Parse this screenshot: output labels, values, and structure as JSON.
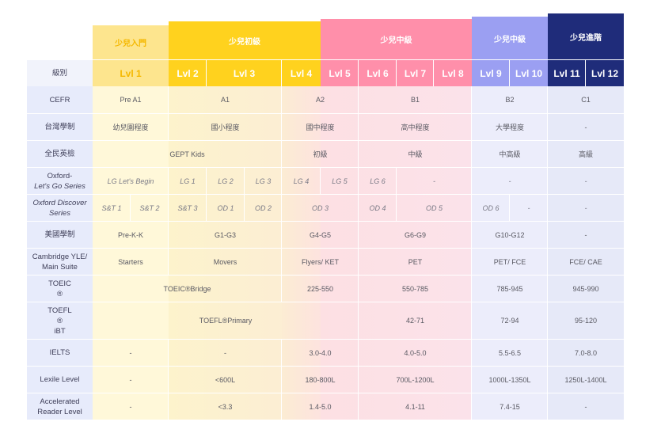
{
  "colors": {
    "band1": "#fde58e",
    "band2": "#ffd21e",
    "band3": "#ff8faa",
    "band4": "#9b9ff2",
    "band5": "#1f2c7a",
    "label_col": "#e7ebfb",
    "band1_text": "#f5b800"
  },
  "bands": [
    "少兒入門",
    "少兒初級",
    "少兒中級",
    "少兒中級",
    "少兒進階"
  ],
  "level_header": "級別",
  "levels": [
    "Lvl 1",
    "Lvl 2",
    "Lvl 3",
    "Lvl 4",
    "Lvl 5",
    "Lvl 6",
    "Lvl 7",
    "Lvl 8",
    "Lvl 9",
    "Lvl 10",
    "Lvl 11",
    "Lvl 12"
  ],
  "rows": {
    "cefr": {
      "label": "CEFR",
      "cells": [
        "Pre A1",
        "A1",
        "A2",
        "B1",
        "B2",
        "C1"
      ]
    },
    "taiwan": {
      "label": "台灣學制",
      "cells": [
        "幼兒園程度",
        "國小程度",
        "國中程度",
        "高中程度",
        "大學程度",
        "-"
      ]
    },
    "gept": {
      "label": "全民英檢",
      "cells": [
        "GEPT Kids",
        "初級",
        "中級",
        "中高級",
        "高級"
      ]
    },
    "letsgo": {
      "label_line1": "Oxford-",
      "label_line2": "Let's Go Series",
      "cells": [
        "LG Let's Begin",
        "LG 1",
        "LG 2",
        "LG 3",
        "LG 4",
        "LG 5",
        "LG 6",
        "-",
        "-",
        "-"
      ]
    },
    "discover": {
      "label_line1": "Oxford Discover",
      "label_line2": "Series",
      "cells": [
        "S&T 1",
        "S&T 2",
        "S&T 3",
        "OD 1",
        "OD 2",
        "OD 3",
        "OD 4",
        "OD 5",
        "OD 6",
        "-",
        "-"
      ]
    },
    "us": {
      "label": "美國學制",
      "cells": [
        "Pre-K-K",
        "G1-G3",
        "G4-G5",
        "G6-G9",
        "G10-G12",
        "-"
      ]
    },
    "cambridge": {
      "label_line1": "Cambridge YLE/",
      "label_line2": "Main Suite",
      "cells": [
        "Starters",
        "Movers",
        "Flyers/ KET",
        "PET",
        "PET/ FCE",
        "FCE/ CAE"
      ]
    },
    "toeic": {
      "label_line1": "TOEIC",
      "label_line2": "®",
      "cells": [
        "TOEIC®Bridge",
        "225-550",
        "550-785",
        "785-945",
        "945-990"
      ]
    },
    "toefl": {
      "label_line1": "TOEFL",
      "label_line2": "®",
      "label_line3": "iBT",
      "cells": [
        "TOEFL®Primary",
        "42-71",
        "72-94",
        "95-120"
      ]
    },
    "ielts": {
      "label": "IELTS",
      "cells": [
        "-",
        "-",
        "3.0-4.0",
        "4.0-5.0",
        "5.5-6.5",
        "7.0-8.0"
      ]
    },
    "lexile": {
      "label": "Lexile Level",
      "cells": [
        "-",
        "<600L",
        "180-800L",
        "700L-1200L",
        "1000L-1350L",
        "1250L-1400L"
      ]
    },
    "ar": {
      "label_line1": "Accelerated",
      "label_line2": "Reader Level",
      "cells": [
        "-",
        "<3.3",
        "1.4-5.0",
        "4.1-11",
        "7.4-15",
        "-"
      ]
    }
  }
}
